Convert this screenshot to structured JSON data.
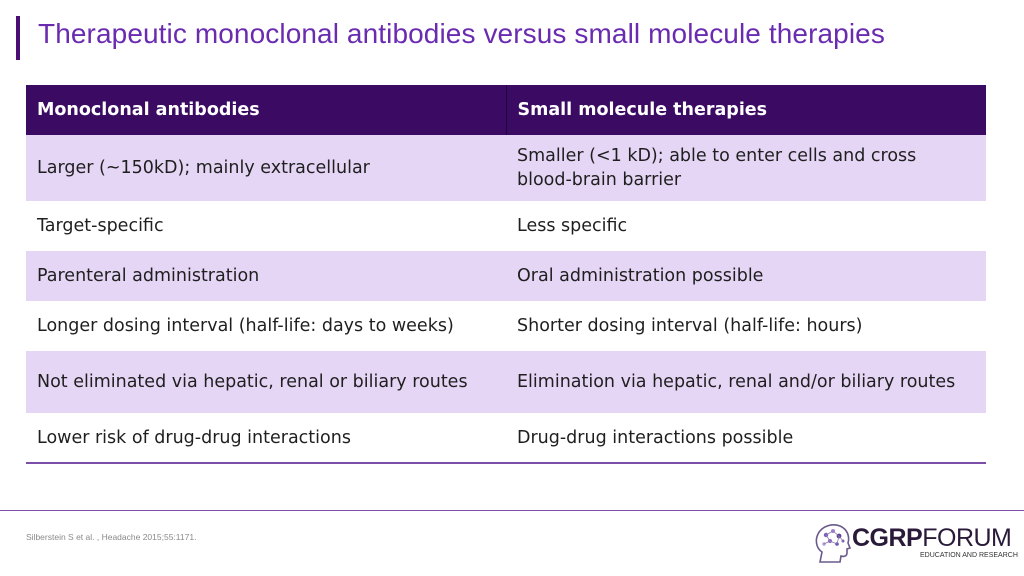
{
  "title": "Therapeutic monoclonal antibodies versus small molecule therapies",
  "table": {
    "headers": [
      "Monoclonal antibodies",
      "Small molecule therapies"
    ],
    "rows": [
      [
        "Larger (~150kD); mainly extracellular",
        "Smaller (<1 kD); able to enter cells and cross blood-brain barrier"
      ],
      [
        "Target-specific",
        "Less specific"
      ],
      [
        "Parenteral administration",
        "Oral administration possible"
      ],
      [
        "Longer dosing interval (half-life: days to weeks)",
        "Shorter dosing interval (half-life: hours)"
      ],
      [
        "Not eliminated via hepatic, renal or biliary routes",
        "Elimination via hepatic, renal and/or biliary routes"
      ],
      [
        "Lower risk of  drug-drug interactions",
        "Drug-drug interactions possible"
      ]
    ]
  },
  "citation": "Silberstein S et al. , Headache 2015;55:1171.",
  "logo": {
    "bold": "CGRP",
    "light": "FORUM",
    "subtitle": "EDUCATION AND RESEARCH",
    "icon": "head-brain-icon"
  },
  "colors": {
    "title": "#6a2bb0",
    "accent_bar": "#4b0e74",
    "header_bg": "#3b0b63",
    "stripe": "#e6d6f6",
    "rule": "#7b4fa8"
  }
}
